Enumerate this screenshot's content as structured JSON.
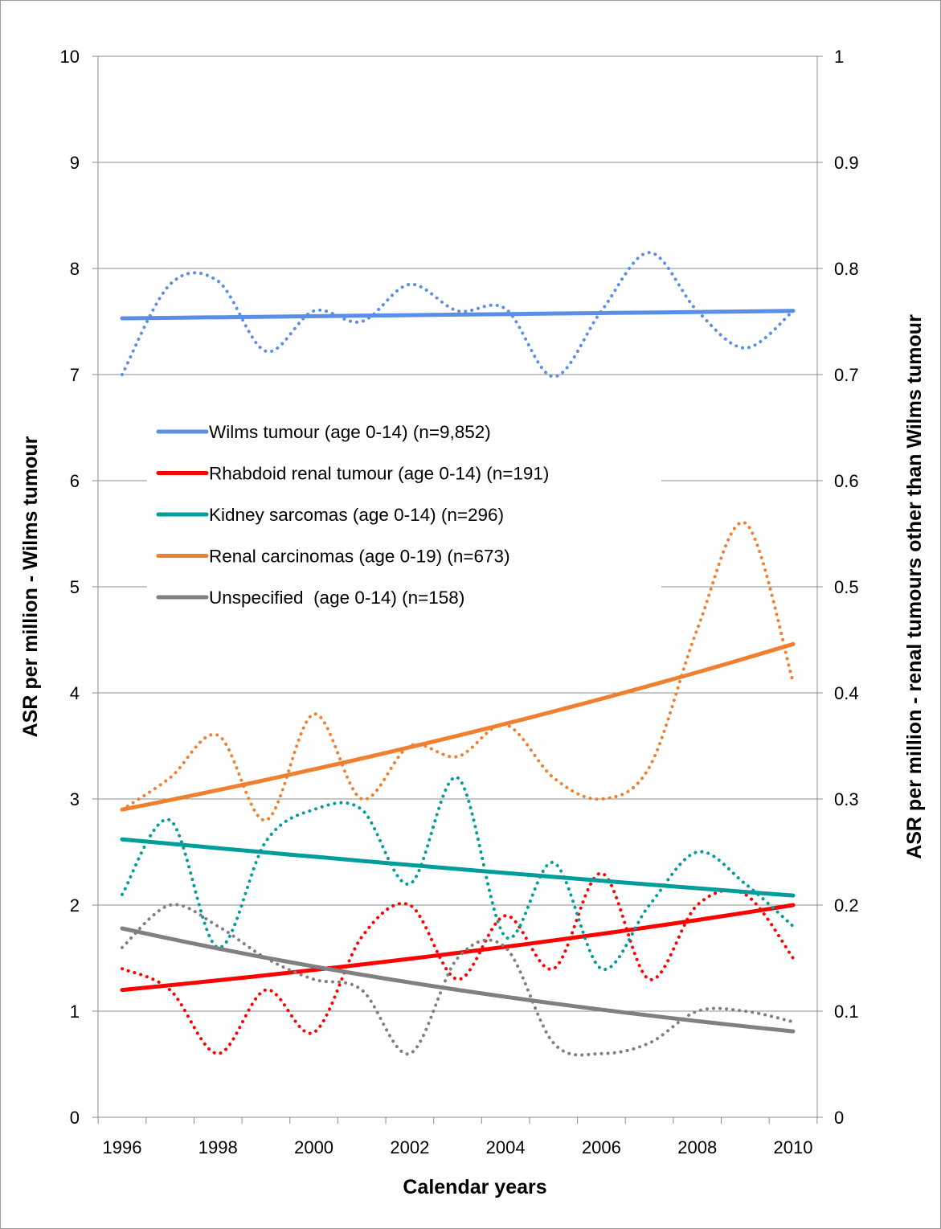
{
  "chart_data": {
    "type": "line",
    "xlabel": "Calendar years",
    "ylabel_left": "ASR per million - Wilms tumour",
    "ylabel_right": "ASR per million - renal tumours other than Wilms tumour",
    "x_ticks": [
      "1996",
      "1998",
      "2000",
      "2002",
      "2004",
      "2006",
      "2008",
      "2010"
    ],
    "y_left_ticks": [
      "0",
      "1",
      "2",
      "3",
      "4",
      "5",
      "6",
      "7",
      "8",
      "9",
      "10"
    ],
    "y_right_ticks": [
      "0",
      "0.1",
      "0.2",
      "0.3",
      "0.4",
      "0.5",
      "0.6",
      "0.7",
      "0.8",
      "0.9",
      "1"
    ],
    "ylim_left": [
      0,
      10
    ],
    "ylim_right": [
      0,
      1
    ],
    "xlim": [
      1996,
      2010
    ],
    "grid": "horizontal",
    "legend_position": "middle-left",
    "years": [
      1996,
      1997,
      1998,
      1999,
      2000,
      2001,
      2002,
      2003,
      2004,
      2005,
      2006,
      2007,
      2008,
      2009,
      2010
    ],
    "series": [
      {
        "name": "Wilms tumour (age 0-14) (n=9,852)",
        "color": "#5b8ee6",
        "axis": "left",
        "values": [
          7.0,
          7.85,
          7.88,
          7.22,
          7.6,
          7.5,
          7.85,
          7.6,
          7.62,
          6.98,
          7.6,
          8.15,
          7.6,
          7.25,
          7.6
        ],
        "trend": [
          7.53,
          7.6
        ]
      },
      {
        "name": "Rhabdoid renal tumour (age 0-14) (n=191)",
        "color": "#ff0000",
        "axis": "right",
        "values": [
          0.14,
          0.12,
          0.06,
          0.12,
          0.08,
          0.17,
          0.2,
          0.13,
          0.19,
          0.14,
          0.23,
          0.13,
          0.2,
          0.21,
          0.15
        ],
        "trend": [
          0.12,
          0.2
        ]
      },
      {
        "name": "Kidney sarcomas (age 0-14) (n=296)",
        "color": "#009e9a",
        "axis": "right",
        "values": [
          0.21,
          0.28,
          0.16,
          0.26,
          0.29,
          0.29,
          0.22,
          0.32,
          0.17,
          0.24,
          0.14,
          0.2,
          0.25,
          0.22,
          0.18
        ],
        "trend": [
          0.262,
          0.209
        ]
      },
      {
        "name": "Renal carcinomas (age 0-19) (n=673)",
        "color": "#f08030",
        "axis": "right",
        "values": [
          0.29,
          0.32,
          0.36,
          0.28,
          0.38,
          0.3,
          0.35,
          0.34,
          0.37,
          0.32,
          0.3,
          0.33,
          0.46,
          0.56,
          0.41
        ],
        "trend": [
          0.29,
          0.446
        ]
      },
      {
        "name": "Unspecified  (age 0-14) (n=158)",
        "color": "#808080",
        "axis": "right",
        "values": [
          0.16,
          0.2,
          0.18,
          0.15,
          0.13,
          0.12,
          0.06,
          0.15,
          0.16,
          0.07,
          0.06,
          0.07,
          0.1,
          0.1,
          0.09
        ],
        "trend": [
          0.178,
          0.081
        ]
      }
    ]
  }
}
